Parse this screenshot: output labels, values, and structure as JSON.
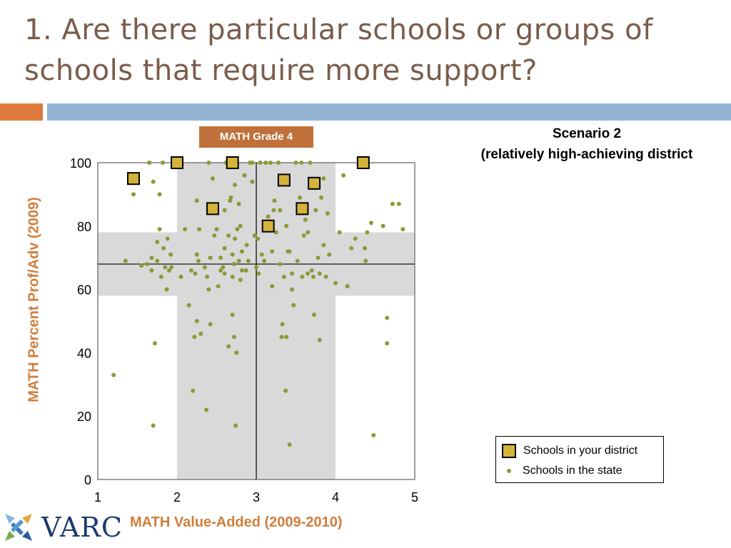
{
  "slide": {
    "title": "1. Are there particular schools or groups of schools that require more support?",
    "badge": "MATH Grade 4",
    "scenario_line1": "Scenario 2",
    "scenario_line2": "(relatively high-achieving district",
    "logo_text": "VARC"
  },
  "colors": {
    "title": "#7a5c4a",
    "accent_orange": "#e07a3c",
    "accent_blue": "#93b3d4",
    "badge_bg": "#c0713a",
    "axis_label": "#d07e3c",
    "district_marker": "#d4b33c",
    "state_dot": "#8a9a38",
    "band": "#d9d9d9"
  },
  "chart_data": {
    "type": "scatter",
    "xlabel": "MATH Value-Added (2009-2010)",
    "ylabel": "MATH Percent Prof/Adv (2009)",
    "xlim": [
      1,
      5
    ],
    "ylim": [
      0,
      100
    ],
    "xticks": [
      "1",
      "2",
      "3",
      "4",
      "5"
    ],
    "yticks": [
      "0",
      "20",
      "40",
      "60",
      "80",
      "100"
    ],
    "grid": false,
    "legend_position": "bottom-right",
    "reference_lines": {
      "x": 3.0,
      "y": 68
    },
    "shaded_bands": {
      "x_range": [
        2.0,
        4.0
      ],
      "y_range": [
        58,
        78
      ]
    },
    "series": [
      {
        "name": "Schools in your district",
        "marker": "square",
        "points": [
          [
            1.45,
            95
          ],
          [
            2.0,
            100
          ],
          [
            2.45,
            85.5
          ],
          [
            2.7,
            100
          ],
          [
            3.15,
            80
          ],
          [
            3.35,
            94.5
          ],
          [
            3.58,
            85.5
          ],
          [
            3.73,
            93.5
          ],
          [
            4.35,
            100
          ]
        ]
      },
      {
        "name": "Schools in the state",
        "marker": "dot",
        "points": [
          [
            1.2,
            33
          ],
          [
            1.35,
            69
          ],
          [
            1.45,
            90
          ],
          [
            1.55,
            67.5
          ],
          [
            1.62,
            68
          ],
          [
            1.65,
            100
          ],
          [
            1.68,
            70
          ],
          [
            1.68,
            66
          ],
          [
            1.7,
            17
          ],
          [
            1.7,
            94
          ],
          [
            1.72,
            43
          ],
          [
            1.75,
            69
          ],
          [
            1.75,
            75
          ],
          [
            1.78,
            79
          ],
          [
            1.78,
            90
          ],
          [
            1.8,
            64
          ],
          [
            1.82,
            100
          ],
          [
            1.83,
            73
          ],
          [
            1.85,
            67
          ],
          [
            1.87,
            60
          ],
          [
            1.88,
            76
          ],
          [
            1.9,
            66
          ],
          [
            1.92,
            71
          ],
          [
            1.93,
            67
          ],
          [
            2.05,
            64
          ],
          [
            2.1,
            79
          ],
          [
            2.15,
            55
          ],
          [
            2.18,
            66
          ],
          [
            2.2,
            28
          ],
          [
            2.22,
            45
          ],
          [
            2.23,
            65
          ],
          [
            2.25,
            50
          ],
          [
            2.25,
            71
          ],
          [
            2.25,
            88
          ],
          [
            2.27,
            69
          ],
          [
            2.28,
            79
          ],
          [
            2.3,
            46
          ],
          [
            2.35,
            67
          ],
          [
            2.37,
            22
          ],
          [
            2.38,
            64
          ],
          [
            2.4,
            60
          ],
          [
            2.4,
            100
          ],
          [
            2.42,
            49
          ],
          [
            2.42,
            70
          ],
          [
            2.45,
            95
          ],
          [
            2.47,
            77
          ],
          [
            2.5,
            79
          ],
          [
            2.52,
            61
          ],
          [
            2.55,
            66
          ],
          [
            2.55,
            70
          ],
          [
            2.58,
            67
          ],
          [
            2.6,
            65
          ],
          [
            2.6,
            73
          ],
          [
            2.6,
            85
          ],
          [
            2.62,
            100
          ],
          [
            2.65,
            42
          ],
          [
            2.65,
            77
          ],
          [
            2.67,
            88
          ],
          [
            2.68,
            89
          ],
          [
            2.7,
            52
          ],
          [
            2.7,
            64
          ],
          [
            2.7,
            71
          ],
          [
            2.72,
            68
          ],
          [
            2.72,
            45
          ],
          [
            2.73,
            76
          ],
          [
            2.73,
            93
          ],
          [
            2.74,
            17
          ],
          [
            2.75,
            40
          ],
          [
            2.76,
            79
          ],
          [
            2.78,
            69
          ],
          [
            2.78,
            87
          ],
          [
            2.8,
            80
          ],
          [
            2.8,
            63
          ],
          [
            2.82,
            72
          ],
          [
            2.82,
            66
          ],
          [
            2.85,
            96
          ],
          [
            2.87,
            66
          ],
          [
            2.88,
            74
          ],
          [
            2.9,
            69
          ],
          [
            2.92,
            100
          ],
          [
            2.95,
            94
          ],
          [
            2.95,
            100
          ],
          [
            2.98,
            77
          ],
          [
            3.0,
            67
          ],
          [
            3.02,
            76
          ],
          [
            3.03,
            65
          ],
          [
            3.05,
            100
          ],
          [
            3.07,
            71
          ],
          [
            3.1,
            69
          ],
          [
            3.1,
            80
          ],
          [
            3.12,
            100
          ],
          [
            3.15,
            83
          ],
          [
            3.18,
            100
          ],
          [
            3.2,
            72
          ],
          [
            3.2,
            61
          ],
          [
            3.22,
            85
          ],
          [
            3.23,
            88
          ],
          [
            3.25,
            78
          ],
          [
            3.28,
            100
          ],
          [
            3.3,
            85
          ],
          [
            3.3,
            68
          ],
          [
            3.32,
            45
          ],
          [
            3.33,
            49
          ],
          [
            3.35,
            64
          ],
          [
            3.37,
            28
          ],
          [
            3.38,
            45
          ],
          [
            3.38,
            80
          ],
          [
            3.4,
            72
          ],
          [
            3.42,
            72
          ],
          [
            3.42,
            11
          ],
          [
            3.45,
            60
          ],
          [
            3.45,
            65
          ],
          [
            3.47,
            55
          ],
          [
            3.5,
            100
          ],
          [
            3.52,
            69
          ],
          [
            3.55,
            89
          ],
          [
            3.57,
            100
          ],
          [
            3.58,
            64
          ],
          [
            3.6,
            77
          ],
          [
            3.62,
            82
          ],
          [
            3.65,
            78
          ],
          [
            3.65,
            65
          ],
          [
            3.68,
            100
          ],
          [
            3.7,
            66
          ],
          [
            3.72,
            64
          ],
          [
            3.73,
            52
          ],
          [
            3.75,
            85
          ],
          [
            3.78,
            70
          ],
          [
            3.8,
            65
          ],
          [
            3.8,
            44
          ],
          [
            3.82,
            89
          ],
          [
            3.85,
            95
          ],
          [
            3.85,
            74
          ],
          [
            3.88,
            64
          ],
          [
            3.9,
            84
          ],
          [
            3.92,
            71
          ],
          [
            4.0,
            62
          ],
          [
            4.05,
            78
          ],
          [
            4.1,
            96
          ],
          [
            4.15,
            61
          ],
          [
            4.2,
            73
          ],
          [
            4.25,
            76
          ],
          [
            4.3,
            100
          ],
          [
            4.37,
            73
          ],
          [
            4.38,
            69
          ],
          [
            4.4,
            78
          ],
          [
            4.45,
            81
          ],
          [
            4.48,
            14
          ],
          [
            4.6,
            80
          ],
          [
            4.65,
            51
          ],
          [
            4.65,
            43
          ],
          [
            4.72,
            87
          ],
          [
            4.8,
            87
          ],
          [
            4.85,
            79
          ]
        ]
      }
    ]
  }
}
